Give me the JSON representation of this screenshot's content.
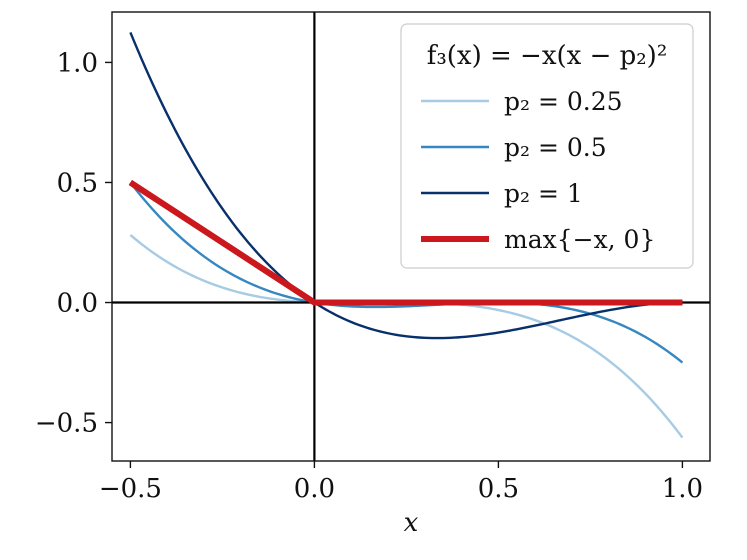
{
  "chart_data": {
    "type": "line",
    "xlabel": "x",
    "ylabel": "",
    "xlim": [
      -0.55,
      1.075
    ],
    "ylim": [
      -0.66,
      1.21
    ],
    "xticks": [
      -0.5,
      0.0,
      0.5,
      1.0
    ],
    "xtick_labels": [
      "−0.5",
      "0.0",
      "0.5",
      "1.0"
    ],
    "yticks": [
      -0.5,
      0.0,
      0.5,
      1.0
    ],
    "ytick_labels": [
      "−0.5",
      "0.0",
      "0.5",
      "1.0"
    ],
    "grid": false,
    "legend_position": "top-right",
    "legend_title": "f₃(x) = −x(x − p₂)²",
    "series": [
      {
        "name": "p₂ = 0.25",
        "color": "#a6cbe3",
        "x": [
          -0.5,
          -0.4,
          -0.3,
          -0.2,
          -0.1,
          0.0,
          0.1,
          0.2,
          0.3,
          0.4,
          0.5,
          0.6,
          0.7,
          0.8,
          0.9,
          1.0
        ],
        "y": [
          0.281,
          0.169,
          0.09,
          0.041,
          0.012,
          0.0,
          -0.002,
          -0.001,
          -0.001,
          -0.009,
          -0.031,
          -0.074,
          -0.142,
          -0.242,
          -0.38,
          -0.563
        ]
      },
      {
        "name": "p₂ = 0.5",
        "color": "#3787c0",
        "x": [
          -0.5,
          -0.4,
          -0.3,
          -0.2,
          -0.1,
          0.0,
          0.1,
          0.2,
          0.3,
          0.4,
          0.5,
          0.6,
          0.7,
          0.8,
          0.9,
          1.0
        ],
        "y": [
          0.5,
          0.324,
          0.192,
          0.098,
          0.036,
          0.0,
          -0.016,
          -0.018,
          -0.012,
          -0.004,
          0.0,
          -0.006,
          -0.028,
          -0.072,
          -0.144,
          -0.25
        ]
      },
      {
        "name": "p₂ = 1",
        "color": "#08306b",
        "x": [
          -0.5,
          -0.4,
          -0.3,
          -0.2,
          -0.1,
          0.0,
          0.1,
          0.2,
          0.3,
          0.4,
          0.5,
          0.6,
          0.7,
          0.8,
          0.9,
          1.0
        ],
        "y": [
          1.125,
          0.784,
          0.507,
          0.288,
          0.121,
          0.0,
          -0.081,
          -0.128,
          -0.147,
          -0.144,
          -0.125,
          -0.096,
          -0.063,
          -0.032,
          -0.009,
          0.0
        ]
      },
      {
        "name": "max{−x, 0}",
        "color": "#cb181d",
        "x": [
          -0.5,
          0.0,
          1.0
        ],
        "y": [
          0.5,
          0.0,
          0.0
        ]
      }
    ]
  }
}
